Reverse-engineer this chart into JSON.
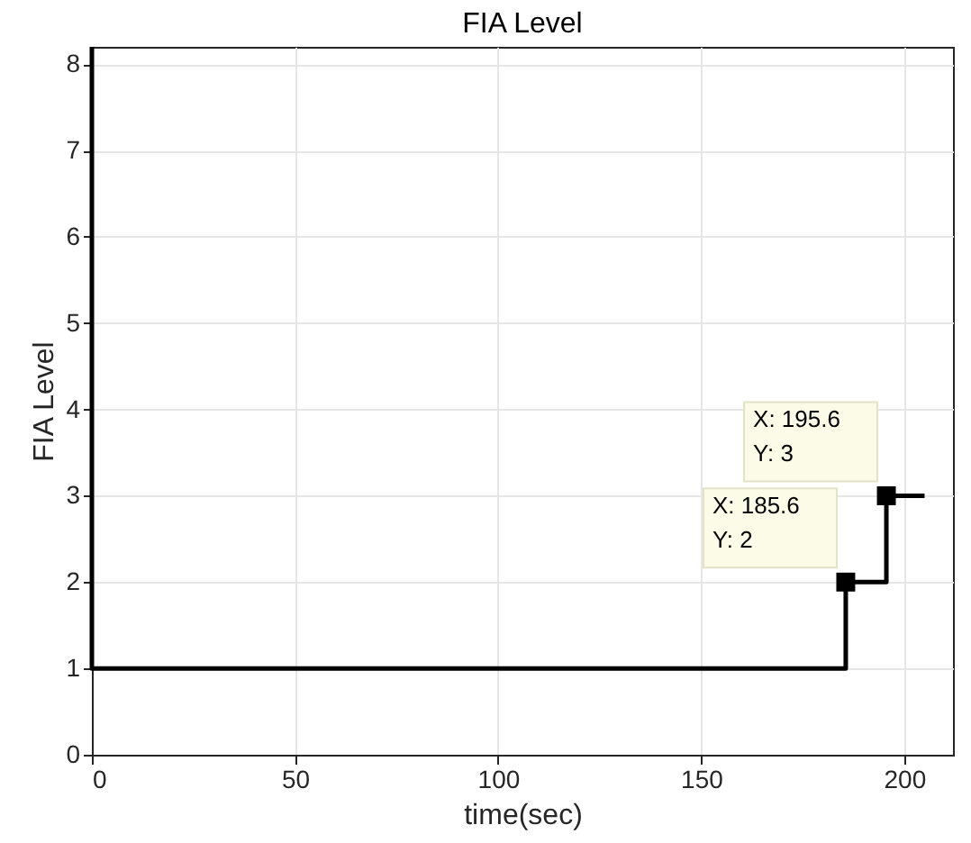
{
  "chart_data": {
    "type": "step",
    "title": "FIA Level",
    "xlabel": "time(sec)",
    "ylabel": "FIA Level",
    "xlim": [
      0,
      212
    ],
    "xticks": [
      0,
      50,
      100,
      150,
      200
    ],
    "ylim": [
      0,
      8.2
    ],
    "yticks": [
      0,
      1,
      2,
      3,
      4,
      5,
      6,
      7,
      8
    ],
    "grid": true,
    "series": [
      {
        "color": "#000000",
        "x": [
          0,
          0,
          185.6,
          195.6,
          205
        ],
        "values": [
          8.2,
          1,
          2,
          3,
          3
        ]
      },
      {
        "type": "scatter",
        "marker": "square",
        "color": "#000000",
        "x": [
          185.6,
          195.6
        ],
        "values": [
          2,
          3
        ]
      }
    ],
    "annotations": [
      {
        "text": "X: 185.6\nY: 2",
        "x": 185.6,
        "y": 2
      },
      {
        "text": "X: 195.6\nY: 3",
        "x": 195.6,
        "y": 3
      }
    ]
  }
}
